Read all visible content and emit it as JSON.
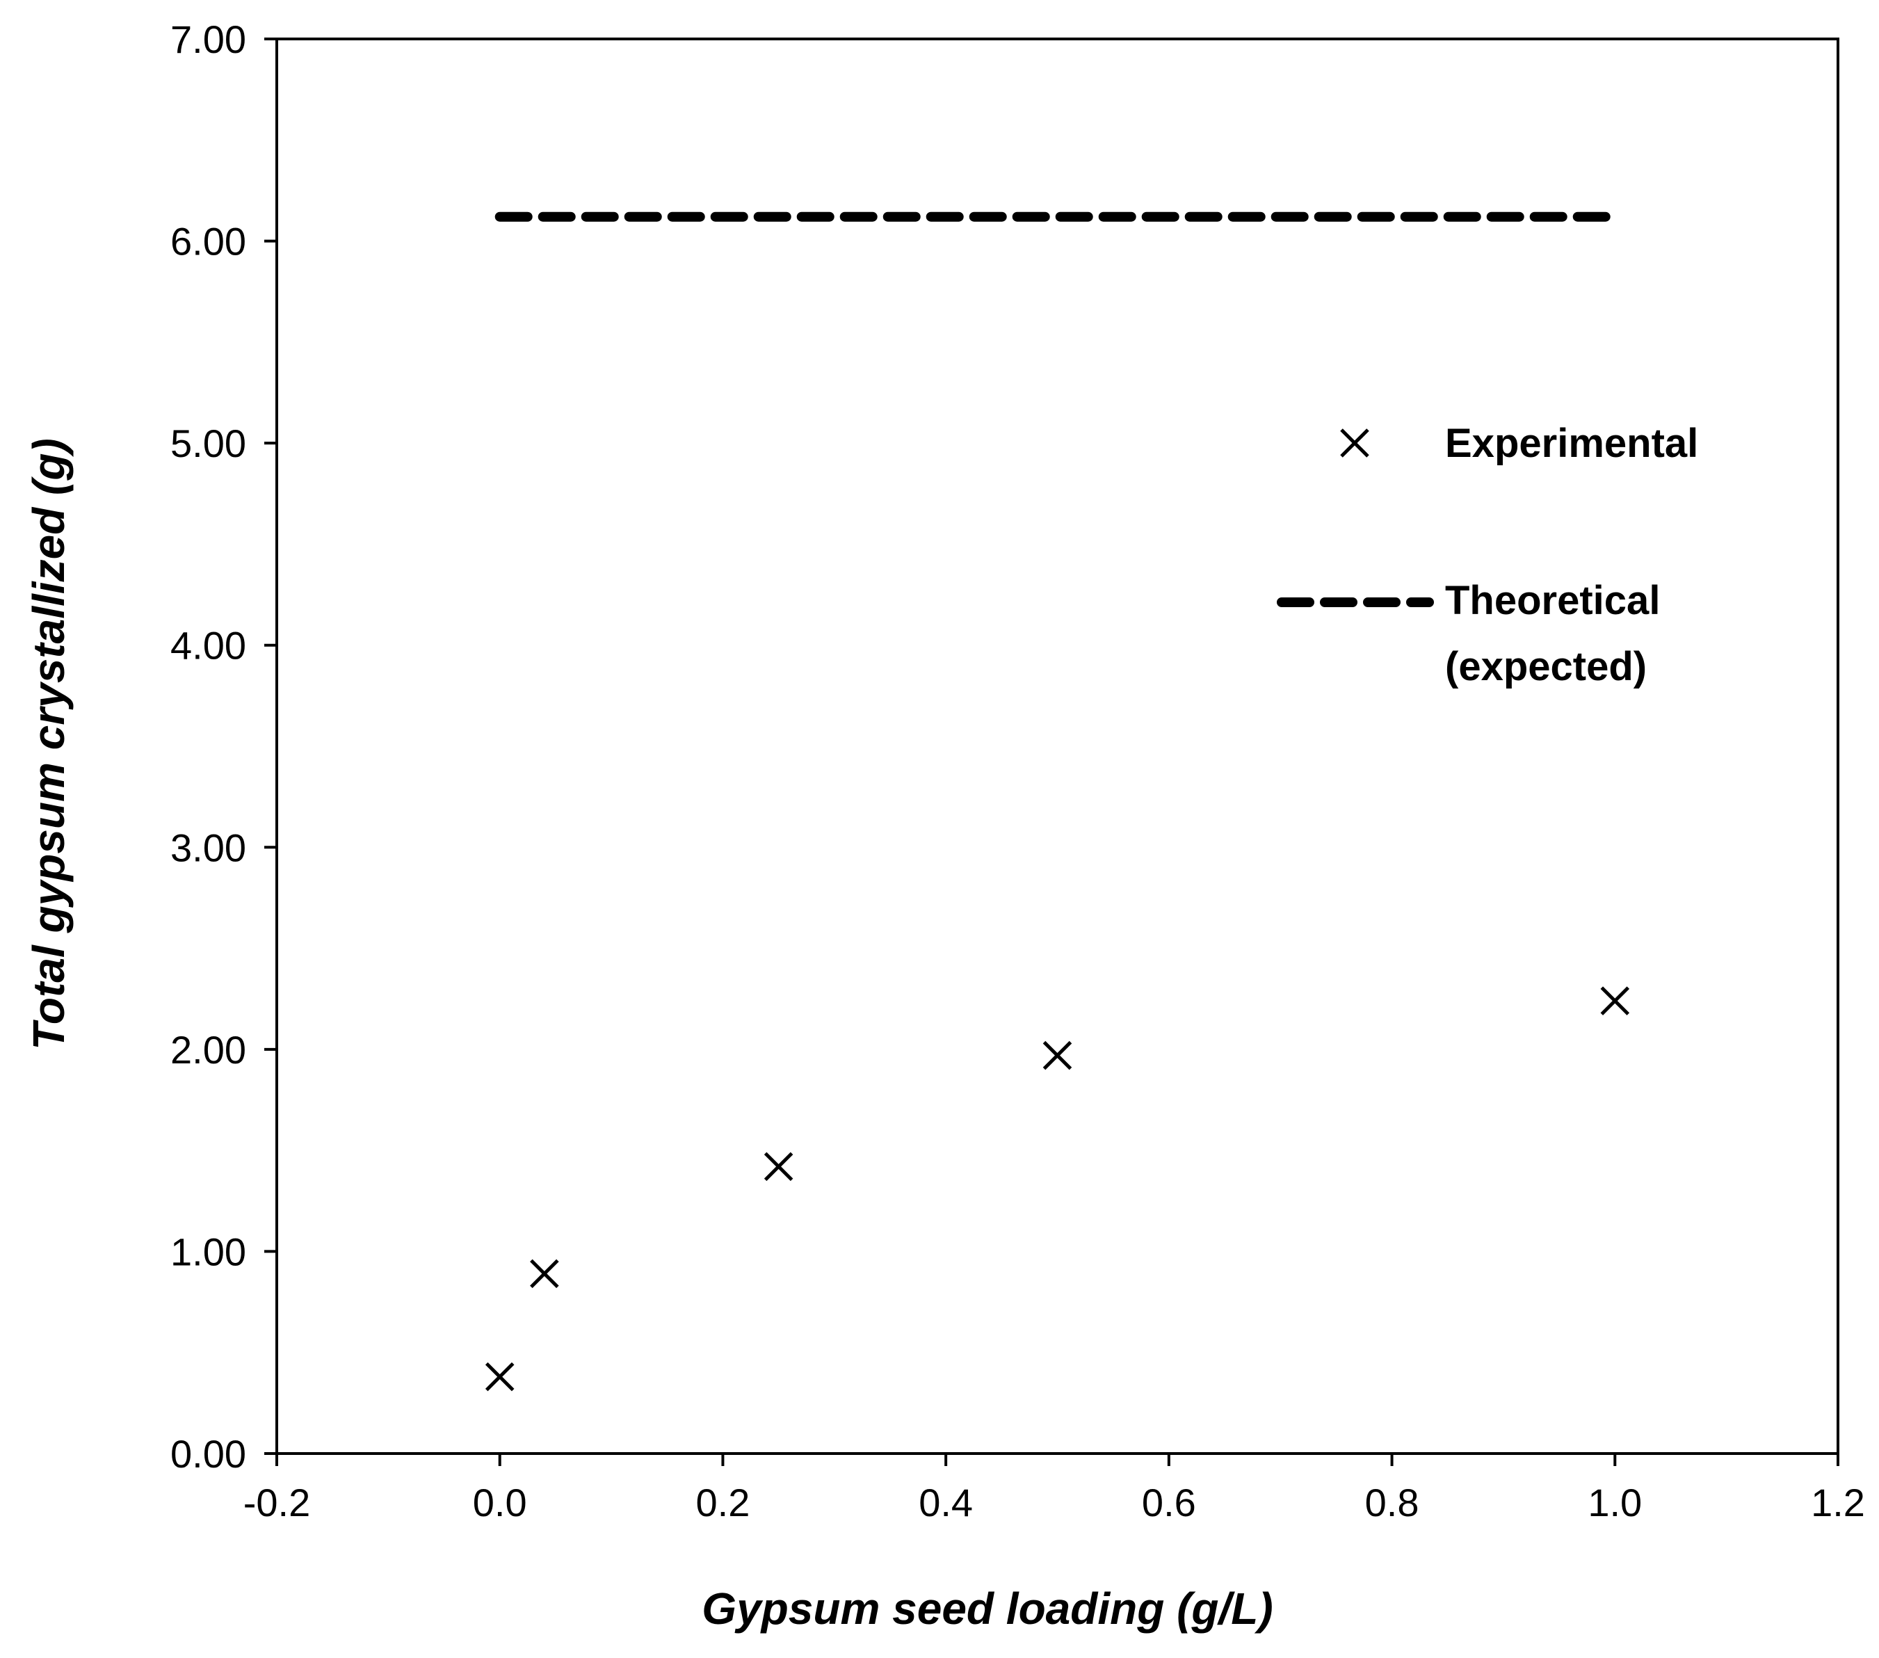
{
  "chart_data": {
    "type": "scatter",
    "title": "",
    "xlabel": "Gypsum seed loading (g/L)",
    "ylabel": "Total gypsum crystallized (g)",
    "xlim": [
      -0.2,
      1.2
    ],
    "ylim": [
      0.0,
      7.0
    ],
    "x_ticks": [
      -0.2,
      0.0,
      0.2,
      0.4,
      0.6,
      0.8,
      1.0,
      1.2
    ],
    "x_tick_labels": [
      "-0.2",
      "0.0",
      "0.2",
      "0.4",
      "0.6",
      "0.8",
      "1.0",
      "1.2"
    ],
    "y_ticks": [
      0,
      1,
      2,
      3,
      4,
      5,
      6,
      7
    ],
    "y_tick_labels": [
      "0.00",
      "1.00",
      "2.00",
      "3.00",
      "4.00",
      "5.00",
      "6.00",
      "7.00"
    ],
    "grid": false,
    "legend_position": "right",
    "series": [
      {
        "name": "Experimental",
        "kind": "scatter",
        "marker": "x",
        "color": "#000000",
        "x": [
          0.0,
          0.04,
          0.25,
          0.5,
          1.0
        ],
        "y": [
          0.38,
          0.89,
          1.42,
          1.97,
          2.24
        ]
      },
      {
        "name": "Theoretical (expected)",
        "legend_lines": [
          "Theoretical",
          "(expected)"
        ],
        "kind": "line",
        "style": "dashed",
        "color": "#000000",
        "x": [
          0.0,
          1.0
        ],
        "y": [
          6.12,
          6.12
        ]
      }
    ]
  }
}
